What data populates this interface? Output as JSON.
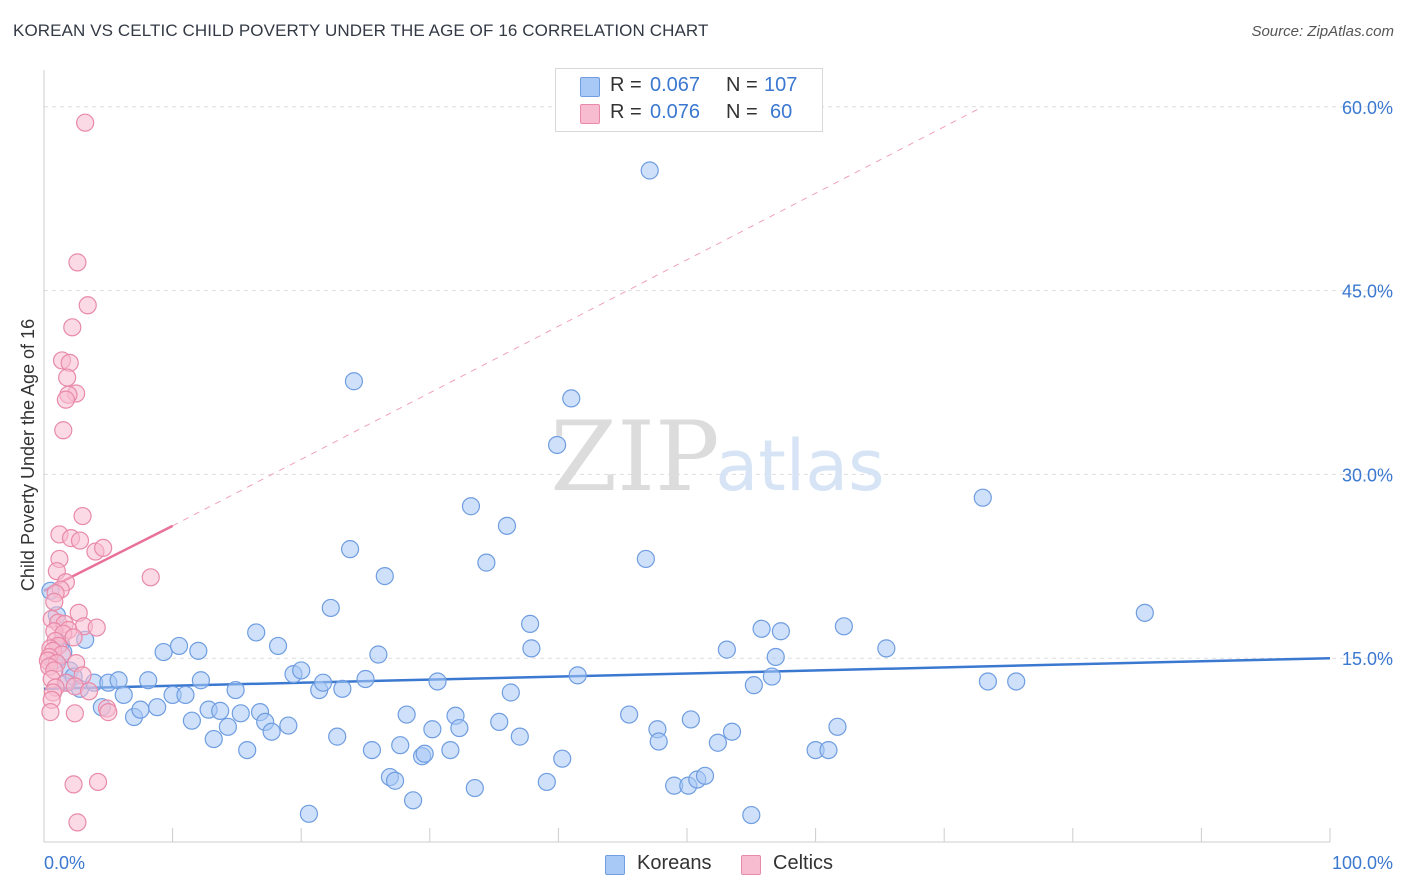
{
  "title": "KOREAN VS CELTIC CHILD POVERTY UNDER THE AGE OF 16 CORRELATION CHART",
  "source": "Source: ZipAtlas.com",
  "watermark": {
    "zip": "ZIP",
    "atlas": "atlas"
  },
  "legend_top": [
    {
      "r_label": "R =",
      "r_value": "0.067",
      "n_label": "N =",
      "n_value": "107",
      "color": "#a8c8f5",
      "border": "#6f9de0"
    },
    {
      "r_label": "R =",
      "r_value": "0.076",
      "n_label": "N =",
      "n_value": "60",
      "color": "#f7bccf",
      "border": "#e88aa8"
    }
  ],
  "legend_bottom": [
    {
      "label": "Koreans",
      "color": "#a8c8f5",
      "border": "#6f9de0"
    },
    {
      "label": "Celtics",
      "color": "#f7bccf",
      "border": "#e88aa8"
    }
  ],
  "chart_data": {
    "type": "scatter",
    "title": "KOREAN VS CELTIC CHILD POVERTY UNDER THE AGE OF 16 CORRELATION CHART",
    "xlabel": "",
    "ylabel": "Child Poverty Under the Age of 16",
    "xlim": [
      0,
      100
    ],
    "ylim": [
      0,
      63
    ],
    "x_tick_labels": [
      "0.0%",
      "100.0%"
    ],
    "y_ticks": [
      15,
      30,
      45,
      60
    ],
    "y_tick_labels": [
      "15.0%",
      "30.0%",
      "45.0%",
      "60.0%"
    ],
    "colors": {
      "korean_line": "#3b78d0",
      "celtic_line": "#e8709a",
      "tick_text": "#3b78d0",
      "grid": "#dddddd"
    },
    "series": [
      {
        "name": "Koreans",
        "color": "#a8c8f5",
        "stroke": "#6f9de0",
        "trend": {
          "x1": 0,
          "y1": 12.5,
          "x2": 100,
          "y2": 15.0
        },
        "points": [
          [
            0.5,
            20.5
          ],
          [
            1.0,
            18.5
          ],
          [
            1.3,
            16.2
          ],
          [
            1.5,
            15.5
          ],
          [
            1.8,
            13.0
          ],
          [
            2.0,
            14.0
          ],
          [
            2.3,
            13.5
          ],
          [
            2.8,
            12.5
          ],
          [
            3.2,
            16.5
          ],
          [
            3.9,
            13.0
          ],
          [
            4.5,
            11.0
          ],
          [
            5.0,
            13.0
          ],
          [
            5.8,
            13.2
          ],
          [
            6.2,
            12.0
          ],
          [
            7.0,
            10.2
          ],
          [
            7.5,
            10.8
          ],
          [
            8.1,
            13.2
          ],
          [
            8.8,
            11.0
          ],
          [
            9.3,
            15.5
          ],
          [
            10.0,
            12.0
          ],
          [
            10.5,
            16.0
          ],
          [
            11.0,
            12.0
          ],
          [
            11.5,
            9.9
          ],
          [
            12.0,
            15.6
          ],
          [
            12.2,
            13.2
          ],
          [
            12.8,
            10.8
          ],
          [
            13.2,
            8.4
          ],
          [
            13.7,
            10.7
          ],
          [
            14.3,
            9.4
          ],
          [
            14.9,
            12.4
          ],
          [
            15.3,
            10.5
          ],
          [
            15.8,
            7.5
          ],
          [
            16.5,
            17.1
          ],
          [
            16.8,
            10.6
          ],
          [
            17.2,
            9.8
          ],
          [
            17.7,
            9.0
          ],
          [
            18.2,
            16.0
          ],
          [
            19.0,
            9.5
          ],
          [
            19.4,
            13.7
          ],
          [
            20.0,
            14.0
          ],
          [
            20.6,
            2.3
          ],
          [
            21.4,
            12.4
          ],
          [
            21.7,
            13.0
          ],
          [
            22.3,
            19.1
          ],
          [
            22.8,
            8.6
          ],
          [
            23.2,
            12.5
          ],
          [
            23.8,
            23.9
          ],
          [
            24.1,
            37.6
          ],
          [
            25.0,
            13.3
          ],
          [
            25.5,
            7.5
          ],
          [
            26.0,
            15.3
          ],
          [
            26.5,
            21.7
          ],
          [
            26.9,
            5.3
          ],
          [
            27.3,
            5.0
          ],
          [
            27.7,
            7.9
          ],
          [
            28.2,
            10.4
          ],
          [
            28.7,
            3.4
          ],
          [
            29.4,
            7.0
          ],
          [
            29.6,
            7.2
          ],
          [
            30.2,
            9.2
          ],
          [
            30.6,
            13.1
          ],
          [
            31.6,
            7.5
          ],
          [
            32.0,
            10.3
          ],
          [
            32.3,
            9.3
          ],
          [
            33.2,
            27.4
          ],
          [
            33.5,
            4.4
          ],
          [
            34.4,
            22.8
          ],
          [
            35.4,
            9.8
          ],
          [
            36.0,
            25.8
          ],
          [
            36.3,
            12.2
          ],
          [
            37.0,
            8.6
          ],
          [
            37.8,
            17.8
          ],
          [
            37.9,
            15.8
          ],
          [
            39.1,
            4.9
          ],
          [
            39.9,
            32.4
          ],
          [
            40.3,
            6.8
          ],
          [
            41.0,
            36.2
          ],
          [
            41.5,
            13.6
          ],
          [
            45.5,
            10.4
          ],
          [
            46.8,
            23.1
          ],
          [
            47.1,
            54.8
          ],
          [
            47.7,
            9.2
          ],
          [
            47.8,
            8.2
          ],
          [
            49.0,
            4.6
          ],
          [
            50.1,
            4.6
          ],
          [
            50.3,
            10.0
          ],
          [
            50.8,
            5.1
          ],
          [
            51.4,
            5.4
          ],
          [
            52.4,
            8.1
          ],
          [
            53.1,
            15.7
          ],
          [
            53.5,
            9.0
          ],
          [
            55.0,
            2.2
          ],
          [
            55.2,
            12.8
          ],
          [
            55.8,
            17.4
          ],
          [
            56.6,
            13.5
          ],
          [
            56.9,
            15.1
          ],
          [
            57.3,
            17.2
          ],
          [
            60.0,
            7.5
          ],
          [
            61.0,
            7.5
          ],
          [
            61.7,
            9.4
          ],
          [
            62.2,
            17.6
          ],
          [
            65.5,
            15.8
          ],
          [
            73.0,
            28.1
          ],
          [
            73.4,
            13.1
          ],
          [
            75.6,
            13.1
          ],
          [
            85.6,
            18.7
          ],
          [
            0.8,
            14.8
          ]
        ]
      },
      {
        "name": "Celtics",
        "color": "#f7bccf",
        "stroke": "#e88aa8",
        "trend": {
          "x1": 0,
          "y1": 20.5,
          "x2": 10,
          "y2": 25.8
        },
        "trend_extension": {
          "x1": 10,
          "y1": 25.8,
          "x2": 73,
          "y2": 60.0
        },
        "points": [
          [
            3.2,
            58.7
          ],
          [
            2.6,
            47.3
          ],
          [
            3.4,
            43.8
          ],
          [
            2.2,
            42.0
          ],
          [
            1.4,
            39.3
          ],
          [
            2.0,
            39.1
          ],
          [
            1.8,
            37.9
          ],
          [
            2.5,
            36.6
          ],
          [
            1.9,
            36.5
          ],
          [
            1.7,
            36.1
          ],
          [
            1.5,
            33.6
          ],
          [
            3.0,
            26.6
          ],
          [
            1.2,
            25.1
          ],
          [
            2.1,
            24.8
          ],
          [
            2.8,
            24.6
          ],
          [
            4.0,
            23.7
          ],
          [
            4.6,
            24.0
          ],
          [
            1.2,
            23.1
          ],
          [
            1.0,
            22.1
          ],
          [
            8.3,
            21.6
          ],
          [
            1.7,
            21.2
          ],
          [
            1.3,
            20.6
          ],
          [
            0.9,
            20.3
          ],
          [
            0.8,
            19.6
          ],
          [
            2.7,
            18.7
          ],
          [
            0.6,
            18.2
          ],
          [
            1.1,
            17.9
          ],
          [
            1.6,
            17.8
          ],
          [
            3.1,
            17.6
          ],
          [
            4.1,
            17.5
          ],
          [
            1.9,
            17.3
          ],
          [
            0.8,
            17.2
          ],
          [
            1.5,
            17.0
          ],
          [
            2.3,
            16.7
          ],
          [
            0.9,
            16.4
          ],
          [
            1.1,
            16.0
          ],
          [
            0.5,
            15.8
          ],
          [
            0.7,
            15.6
          ],
          [
            1.4,
            15.3
          ],
          [
            0.4,
            15.1
          ],
          [
            0.3,
            14.8
          ],
          [
            1.0,
            14.6
          ],
          [
            2.5,
            14.6
          ],
          [
            0.4,
            14.3
          ],
          [
            0.8,
            14.0
          ],
          [
            3.0,
            13.6
          ],
          [
            0.6,
            13.3
          ],
          [
            1.7,
            13.0
          ],
          [
            0.9,
            12.6
          ],
          [
            2.4,
            12.7
          ],
          [
            3.5,
            12.3
          ],
          [
            0.7,
            12.2
          ],
          [
            0.6,
            11.6
          ],
          [
            4.9,
            10.9
          ],
          [
            5.0,
            10.6
          ],
          [
            2.4,
            10.5
          ],
          [
            0.5,
            10.6
          ],
          [
            2.3,
            4.7
          ],
          [
            4.2,
            4.9
          ],
          [
            2.6,
            1.6
          ]
        ]
      }
    ]
  }
}
